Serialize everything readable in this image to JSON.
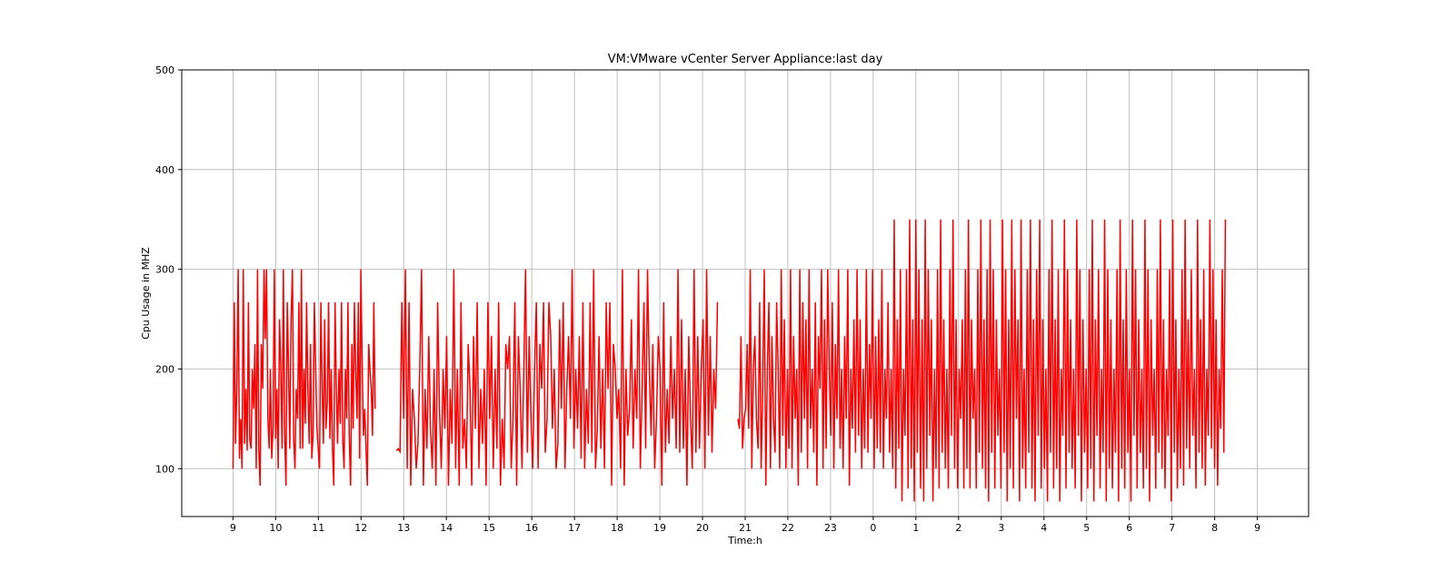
{
  "chart_data": {
    "type": "line",
    "title": "VM:VMware vCenter Server Appliance:last day",
    "xlabel": "Time:h",
    "ylabel": "Cpu Usage in MHZ",
    "xlim": [
      -1.2,
      25.2
    ],
    "ylim": [
      52,
      500
    ],
    "grid": true,
    "x_ticks": [
      0,
      1,
      2,
      3,
      4,
      5,
      6,
      7,
      8,
      9,
      10,
      11,
      12,
      13,
      14,
      15,
      16,
      17,
      18,
      19,
      20,
      21,
      22,
      23,
      24
    ],
    "x_tick_labels": [
      "9",
      "10",
      "11",
      "12",
      "13",
      "14",
      "15",
      "16",
      "17",
      "18",
      "19",
      "20",
      "21",
      "22",
      "23",
      "0",
      "1",
      "2",
      "3",
      "4",
      "5",
      "6",
      "7",
      "8",
      "9"
    ],
    "y_ticks": [
      100,
      200,
      300,
      400,
      500
    ],
    "y_tick_labels": [
      "100",
      "200",
      "300",
      "400",
      "500"
    ],
    "series": [
      {
        "color": "#ff0000",
        "segments": [
          {
            "x_start": 0.0,
            "x_end": 3.33,
            "min": 83,
            "max": 300,
            "values": [
              100,
              267,
              125,
              180,
              300,
              110,
              150,
              100,
              300,
              125,
              180,
              118,
              267,
              130,
              120,
              200,
              160,
              225,
              100,
              300,
              120,
              83,
              225,
              180,
              300,
              230,
              300,
              150,
              120,
              200,
              110,
              140,
              300,
              130,
              180,
              100,
              250,
              200,
              120,
              300,
              140,
              83,
              267,
              200,
              120,
              250,
              300,
              130,
              100,
              180,
              150,
              267,
              120,
              300,
              120,
              200,
              145,
              267,
              180,
              125,
              225,
              110,
              133,
              267,
              200,
              140,
              120,
              100,
              267,
              180,
              125,
              250,
              140,
              167,
              267,
              130,
              200,
              120,
              83,
              267,
              180,
              125,
              200,
              145,
              267,
              130,
              100,
              200,
              150,
              267,
              133,
              83,
              225,
              140,
              267,
              200,
              150,
              267,
              110,
              300,
              200,
              133,
              160,
              120,
              83,
              225,
              200,
              180,
              133,
              267,
              160
            ]
          },
          {
            "x_start": 3.83,
            "x_end": 11.35,
            "min": 83,
            "max": 300,
            "values": [
              118,
              120,
              117,
              267,
              150,
              300,
              100,
              267,
              83,
              180,
              150,
              100,
              125,
              200,
              300,
              83,
              180,
              120,
              233,
              140,
              100,
              200,
              83,
              267,
              160,
              100,
              200,
              140,
              233,
              83,
              180,
              125,
              300,
              100,
              200,
              83,
              267,
              120,
              150,
              100,
              225,
              180,
              83,
              233,
              140,
              267,
              100,
              180,
              125,
              200,
              83,
              267,
              150,
              233,
              100,
              200,
              120,
              267,
              83,
              150,
              100,
              225,
              200,
              233,
              100,
              150,
              267,
              83,
              233,
              180,
              100,
              200,
              300,
              116,
              233,
              150,
              100,
              200,
              267,
              100,
              225,
              180,
              267,
              116,
              150,
              267,
              233,
              140,
              200,
              100,
              125,
              250,
              160,
              267,
              100,
              180,
              233,
              150,
              300,
              120,
              200,
              140,
              233,
              110,
              267,
              100,
              180,
              125,
              267,
              116,
              300,
              100,
              140,
              233,
              120,
              200,
              100,
              267,
              180,
              267,
              83,
              225,
              200,
              150,
              180,
              100,
              300,
              83,
              200,
              133,
              160,
              250,
              120,
              200,
              150,
              300,
              100,
              180,
              267,
              120,
              300,
              200,
              133,
              225,
              100,
              150,
              233,
              200,
              83,
              267,
              116,
              180,
              125,
              233,
              150,
              200,
              120,
              300,
              116,
              250,
              120,
              200,
              83,
              233,
              150,
              100,
              300,
              116,
              233,
              120,
              200,
              250,
              100,
              300,
              133,
              233,
              116,
              200,
              160,
              267
            ]
          },
          {
            "x_start": 11.83,
            "x_end": 23.25,
            "min": 65,
            "max": 350,
            "values": [
              150,
              140,
              233,
              120,
              150,
              160,
              225,
              140,
              300,
              100,
              200,
              233,
              150,
              120,
              267,
              100,
              180,
              300,
              83,
              200,
              267,
              100,
              233,
              150,
              116,
              267,
              200,
              100,
              300,
              133,
              250,
              100,
              200,
              120,
              300,
              100,
              233,
              150,
              200,
              83,
              300,
              116,
              267,
              150,
              250,
              100,
              300,
              140,
              200,
              116,
              267,
              83,
              233,
              180,
              300,
              100,
              250,
              120,
              300,
              200,
              133,
              267,
              100,
              225,
              150,
              300,
              120,
              200,
              100,
              233,
              150,
              300,
              83,
              200,
              140,
              250,
              116,
              300,
              133,
              250,
              100,
              200,
              120,
              300,
              116,
              225,
              150,
              300,
              100,
              233,
              120,
              250,
              116,
              300,
              100,
              200,
              150,
              267,
              116,
              200,
              100,
              350,
              80,
              250,
              120,
              300,
              67,
              200,
              133,
              300,
              80,
              350,
              100,
              250,
              67,
              350,
              116,
              300,
              80,
              250,
              67,
              350,
              100,
              300,
              133,
              250,
              67,
              200,
              100,
              300,
              80,
              350,
              116,
              250,
              100,
              200,
              80,
              300,
              133,
              350,
              100,
              250,
              80,
              200,
              150,
              250,
              80,
              300,
              100,
              350,
              80,
              250,
              150,
              200,
              80,
              300,
              116,
              350,
              100,
              250,
              80,
              300,
              67,
              350,
              116,
              300,
              80,
              250,
              133,
              200,
              80,
              350,
              116,
              300,
              67,
              250,
              100,
              350,
              80,
              300,
              150,
              250,
              67,
              350,
              100,
              200,
              80,
              300,
              116,
              350,
              80,
              250,
              67,
              300,
              133,
              350,
              80,
              250,
              100,
              200,
              67,
              300,
              116,
              350,
              80,
              250,
              100,
              300,
              67,
              200,
              133,
              350,
              80,
              300,
              116,
              250,
              100,
              200,
              80,
              350,
              133,
              300,
              67,
              250,
              116,
              200,
              80,
              300,
              100,
              350,
              67,
              250,
              133,
              300,
              80,
              200,
              116,
              350,
              67,
              300,
              100,
              250,
              80,
              200,
              116,
              300,
              67,
              350,
              100,
              250,
              80,
              300,
              116,
              200,
              67,
              350,
              133,
              300,
              80,
              250,
              116,
              200,
              80,
              350,
              100,
              300,
              67,
              250,
              133,
              200,
              80,
              300,
              116,
              350,
              100,
              250,
              80,
              200,
              133,
              300,
              67,
              350,
              116,
              250,
              80,
              200,
              100,
              300,
              83,
              350,
              120,
              250,
              100,
              300,
              133,
              200,
              80,
              350,
              116,
              250,
              100,
              300,
              83,
              200,
              133,
              350,
              120,
              300,
              100,
              250,
              83,
              200,
              140,
              300,
              116,
              350
            ]
          }
        ]
      }
    ]
  }
}
